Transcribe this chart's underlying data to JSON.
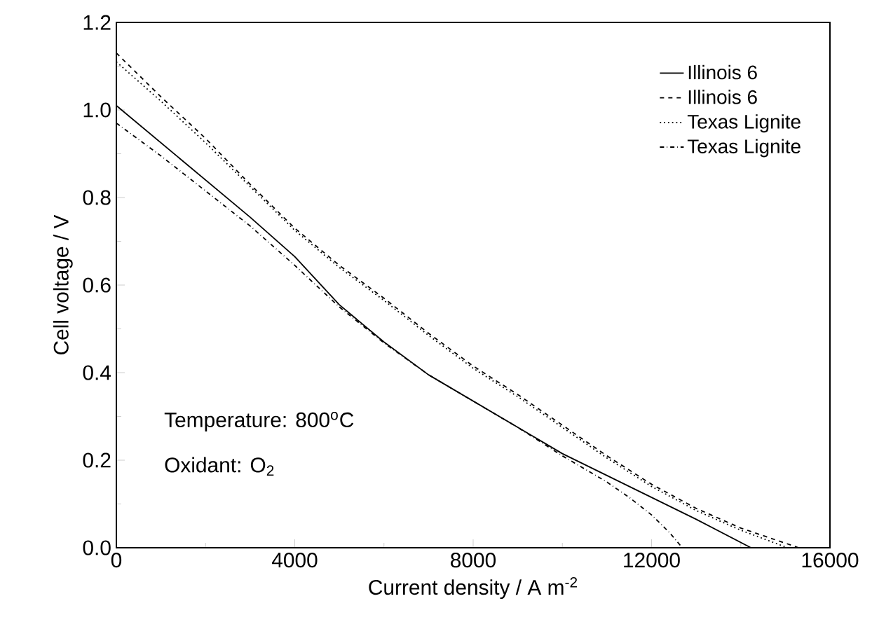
{
  "chart_data": {
    "type": "line",
    "xlabel": "Current density / A m$^{-2}$",
    "ylabel": "Cell voltage / V",
    "xlim": [
      0,
      16000
    ],
    "ylim": [
      0,
      1.2
    ],
    "xticks": [
      0,
      4000,
      8000,
      12000,
      16000
    ],
    "yticks": [
      {
        "value": 0,
        "label": "0.0"
      },
      {
        "value": 0.2,
        "label": "0.2"
      },
      {
        "value": 0.4,
        "label": "0.4"
      },
      {
        "value": 0.6,
        "label": "0.6"
      },
      {
        "value": 0.8,
        "label": "0.8"
      },
      {
        "value": 1.0,
        "label": "1.0"
      },
      {
        "value": 1.2,
        "label": "1.2"
      }
    ],
    "grid": false,
    "legend": "top right",
    "marker": "none",
    "annotations": [
      "Temperature: 800$^{o}$C",
      "Oxidant: O$_{2}$"
    ],
    "series": [
      {
        "name": "Illinois 6",
        "color": "#000000",
        "line_style": "solid",
        "x": [
          0,
          1000,
          2000,
          3000,
          4000,
          5000,
          6000,
          7000,
          8000,
          9000,
          10000,
          11000,
          12000,
          13000,
          14230
        ],
        "values": [
          1.01,
          0.925,
          0.84,
          0.755,
          0.665,
          0.555,
          0.47,
          0.395,
          0.335,
          0.275,
          0.215,
          0.165,
          0.115,
          0.065,
          0
        ]
      },
      {
        "name": "Illinois 6",
        "color": "#000000",
        "line_style": "dashed",
        "x": [
          0,
          1000,
          2000,
          3000,
          4000,
          5000,
          6000,
          7000,
          8000,
          9000,
          10000,
          11000,
          12000,
          13000,
          14000,
          15300
        ],
        "values": [
          1.13,
          1.03,
          0.935,
          0.83,
          0.73,
          0.645,
          0.57,
          0.49,
          0.415,
          0.35,
          0.28,
          0.21,
          0.145,
          0.09,
          0.045,
          0
        ]
      },
      {
        "name": "Texas Lignite",
        "color": "#000000",
        "line_style": "dotted",
        "x": [
          0,
          1000,
          2000,
          3000,
          4000,
          5000,
          6000,
          7000,
          8000,
          9000,
          10000,
          11000,
          12000,
          13000,
          14000,
          15050
        ],
        "values": [
          1.11,
          1.02,
          0.925,
          0.825,
          0.725,
          0.64,
          0.565,
          0.485,
          0.41,
          0.345,
          0.275,
          0.205,
          0.14,
          0.085,
          0.04,
          0
        ]
      },
      {
        "name": "Texas Lignite",
        "color": "#000000",
        "line_style": "dashdot",
        "x": [
          0,
          1000,
          2000,
          3000,
          4000,
          5000,
          6000,
          7000,
          8000,
          9000,
          10000,
          11000,
          11500,
          12000,
          12400,
          12690
        ],
        "values": [
          0.97,
          0.895,
          0.815,
          0.735,
          0.645,
          0.55,
          0.468,
          0.395,
          0.335,
          0.275,
          0.21,
          0.15,
          0.115,
          0.075,
          0.035,
          0
        ]
      }
    ]
  }
}
